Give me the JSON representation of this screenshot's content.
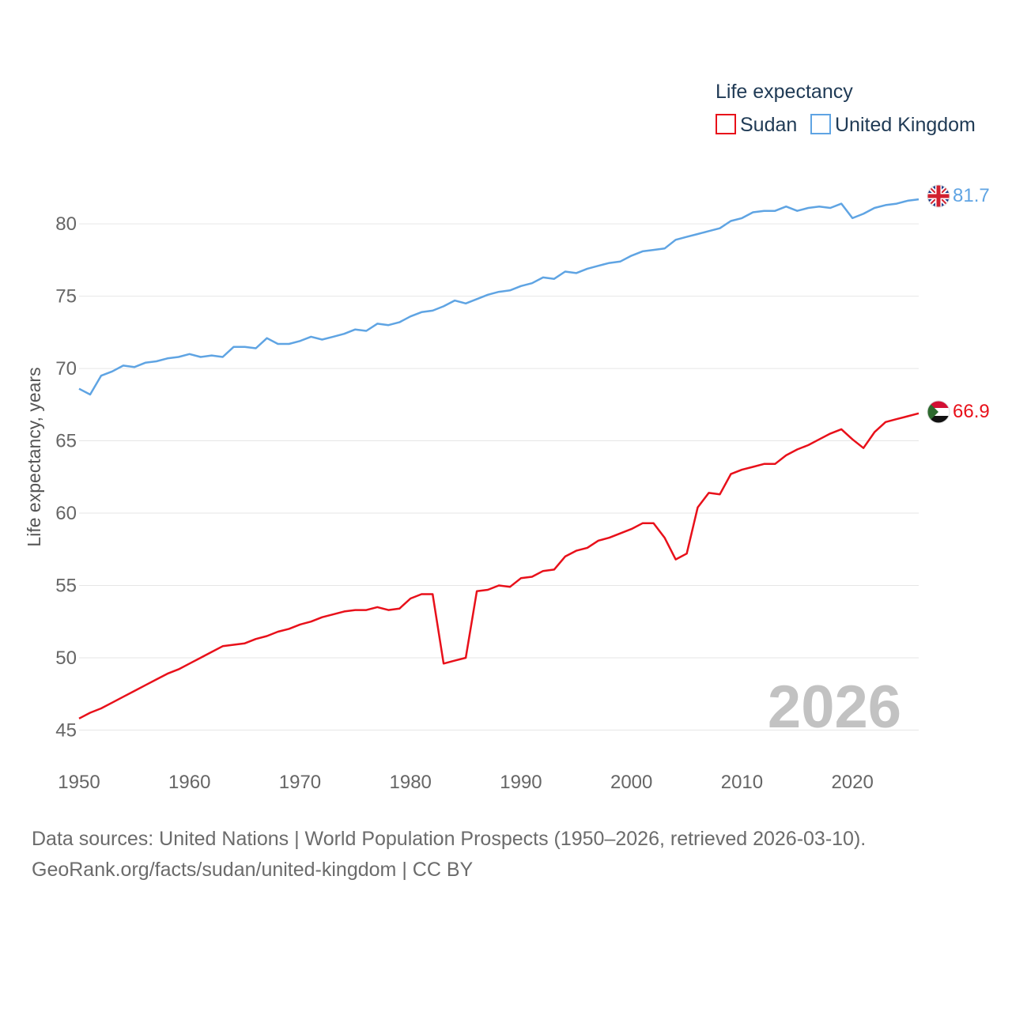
{
  "chart_data": {
    "type": "line",
    "ylabel": "Life expectancy, years",
    "xlim": [
      1950,
      2026
    ],
    "ylim": [
      43,
      84
    ],
    "yticks": [
      45,
      50,
      55,
      60,
      65,
      70,
      75,
      80
    ],
    "xticks": [
      1950,
      1960,
      1970,
      1980,
      1990,
      2000,
      2010,
      2020
    ],
    "year_label": "2026",
    "legend": {
      "title": "Life expectancy",
      "position": "top-right"
    },
    "series": [
      {
        "name": "Sudan",
        "color": "#e8101a",
        "flag": "sudan-flag",
        "end_label": "66.9",
        "x": [
          1950,
          1951,
          1952,
          1953,
          1954,
          1955,
          1956,
          1957,
          1958,
          1959,
          1960,
          1961,
          1962,
          1963,
          1964,
          1965,
          1966,
          1967,
          1968,
          1969,
          1970,
          1971,
          1972,
          1973,
          1974,
          1975,
          1976,
          1977,
          1978,
          1979,
          1980,
          1981,
          1982,
          1983,
          1984,
          1985,
          1986,
          1987,
          1988,
          1989,
          1990,
          1991,
          1992,
          1993,
          1994,
          1995,
          1996,
          1997,
          1998,
          1999,
          2000,
          2001,
          2002,
          2003,
          2004,
          2005,
          2006,
          2007,
          2008,
          2009,
          2010,
          2011,
          2012,
          2013,
          2014,
          2015,
          2016,
          2017,
          2018,
          2019,
          2020,
          2021,
          2022,
          2023,
          2024,
          2025,
          2026
        ],
        "values": [
          45.8,
          46.2,
          46.5,
          46.9,
          47.3,
          47.7,
          48.1,
          48.5,
          48.9,
          49.2,
          49.6,
          50.0,
          50.4,
          50.8,
          50.9,
          51.0,
          51.3,
          51.5,
          51.8,
          52.0,
          52.3,
          52.5,
          52.8,
          53.0,
          53.2,
          53.3,
          53.3,
          53.5,
          53.3,
          53.4,
          54.1,
          54.4,
          54.4,
          49.6,
          49.8,
          50.0,
          54.6,
          54.7,
          55.0,
          54.9,
          55.5,
          55.6,
          56.0,
          56.1,
          57.0,
          57.4,
          57.6,
          58.1,
          58.3,
          58.6,
          58.9,
          59.3,
          59.3,
          58.3,
          56.8,
          57.2,
          60.4,
          61.4,
          61.3,
          62.7,
          63.0,
          63.2,
          63.4,
          63.4,
          64.0,
          64.4,
          64.7,
          65.1,
          65.5,
          65.8,
          65.1,
          64.5,
          65.6,
          66.3,
          66.5,
          66.7,
          66.9
        ]
      },
      {
        "name": "United Kingdom",
        "color": "#5fa4e3",
        "flag": "united-kingdom-flag",
        "end_label": "81.7",
        "x": [
          1950,
          1951,
          1952,
          1953,
          1954,
          1955,
          1956,
          1957,
          1958,
          1959,
          1960,
          1961,
          1962,
          1963,
          1964,
          1965,
          1966,
          1967,
          1968,
          1969,
          1970,
          1971,
          1972,
          1973,
          1974,
          1975,
          1976,
          1977,
          1978,
          1979,
          1980,
          1981,
          1982,
          1983,
          1984,
          1985,
          1986,
          1987,
          1988,
          1989,
          1990,
          1991,
          1992,
          1993,
          1994,
          1995,
          1996,
          1997,
          1998,
          1999,
          2000,
          2001,
          2002,
          2003,
          2004,
          2005,
          2006,
          2007,
          2008,
          2009,
          2010,
          2011,
          2012,
          2013,
          2014,
          2015,
          2016,
          2017,
          2018,
          2019,
          2020,
          2021,
          2022,
          2023,
          2024,
          2025,
          2026
        ],
        "values": [
          68.6,
          68.2,
          69.5,
          69.8,
          70.2,
          70.1,
          70.4,
          70.5,
          70.7,
          70.8,
          71.0,
          70.8,
          70.9,
          70.8,
          71.5,
          71.5,
          71.4,
          72.1,
          71.7,
          71.7,
          71.9,
          72.2,
          72.0,
          72.2,
          72.4,
          72.7,
          72.6,
          73.1,
          73.0,
          73.2,
          73.6,
          73.9,
          74.0,
          74.3,
          74.7,
          74.5,
          74.8,
          75.1,
          75.3,
          75.4,
          75.7,
          75.9,
          76.3,
          76.2,
          76.7,
          76.6,
          76.9,
          77.1,
          77.3,
          77.4,
          77.8,
          78.1,
          78.2,
          78.3,
          78.9,
          79.1,
          79.3,
          79.5,
          79.7,
          80.2,
          80.4,
          80.8,
          80.9,
          80.9,
          81.2,
          80.9,
          81.1,
          81.2,
          81.1,
          81.4,
          80.4,
          80.7,
          81.1,
          81.3,
          81.4,
          81.6,
          81.7
        ]
      }
    ]
  },
  "footer": {
    "line1": "Data sources: United Nations | World Population Prospects (1950–2026, retrieved 2026-03-10).",
    "line2": "GeoRank.org/facts/sudan/united-kingdom | CC BY"
  }
}
